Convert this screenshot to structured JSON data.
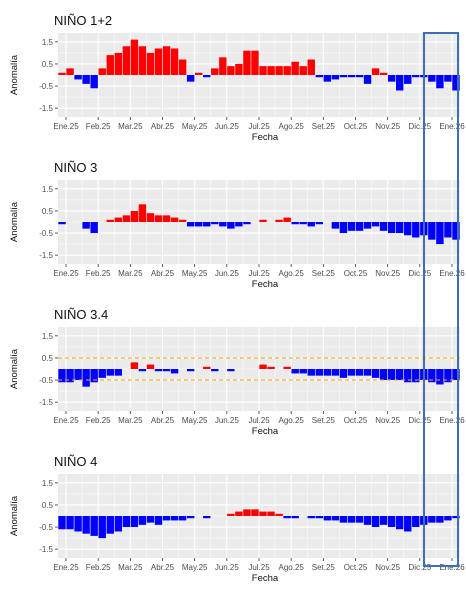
{
  "colors": {
    "positive": "#ff0000",
    "negative": "#0000ff",
    "threshold": "#ffa500",
    "panel_bg": "#ebebeb",
    "grid": "#ffffff",
    "highlight": "#3d6fb5"
  },
  "chart_data": [
    {
      "type": "bar",
      "title": "NIÑO 1+2",
      "xlabel": "Fecha",
      "ylabel": "Anomalía",
      "ylim": [
        -1.9,
        1.9
      ],
      "yticks": [
        -1.5,
        -0.5,
        0.5,
        1.5
      ],
      "xtick_labels": [
        "Ene.25",
        "Feb.25",
        "Mar.25",
        "Abr.25",
        "May.25",
        "Jun.25",
        "Jul.25",
        "Ago.25",
        "Set.25",
        "Oct.25",
        "Nov.25",
        "Dic.25",
        "Ene.26"
      ],
      "grid": true,
      "thresholds": [],
      "values": [
        0.1,
        0.3,
        -0.2,
        -0.4,
        -0.6,
        0.3,
        0.9,
        1.0,
        1.3,
        1.6,
        1.3,
        1.0,
        1.2,
        1.3,
        1.2,
        0.7,
        -0.3,
        0.1,
        -0.1,
        0.3,
        0.8,
        0.4,
        0.5,
        1.1,
        1.1,
        0.4,
        0.4,
        0.4,
        0.4,
        0.6,
        0.4,
        0.7,
        -0.1,
        -0.3,
        -0.2,
        -0.1,
        -0.1,
        -0.1,
        -0.4,
        0.3,
        0.1,
        -0.3,
        -0.7,
        -0.4,
        -0.1,
        -0.1,
        -0.3,
        -0.6,
        -0.3,
        -0.7
      ]
    },
    {
      "type": "bar",
      "title": "NIÑO 3",
      "xlabel": "Fecha",
      "ylabel": "Anomalía",
      "ylim": [
        -1.9,
        1.9
      ],
      "yticks": [
        -1.5,
        -0.5,
        0.5,
        1.5
      ],
      "xtick_labels": [
        "Ene.25",
        "Feb.25",
        "Mar.25",
        "Abr.25",
        "May.25",
        "Jun.25",
        "Jul.25",
        "Ago.25",
        "Set.25",
        "Oct.25",
        "Nov.25",
        "Dic.25",
        "Ene.26"
      ],
      "grid": true,
      "thresholds": [],
      "values": [
        -0.1,
        0.0,
        0.0,
        -0.3,
        -0.5,
        0.0,
        0.1,
        0.2,
        0.3,
        0.5,
        0.8,
        0.4,
        0.3,
        0.3,
        0.2,
        0.1,
        -0.2,
        -0.2,
        -0.2,
        -0.1,
        -0.2,
        -0.3,
        -0.2,
        -0.1,
        0.0,
        0.1,
        0.0,
        0.1,
        0.2,
        -0.1,
        -0.1,
        -0.2,
        -0.1,
        0.0,
        -0.3,
        -0.5,
        -0.4,
        -0.4,
        -0.3,
        -0.2,
        -0.4,
        -0.5,
        -0.5,
        -0.6,
        -0.7,
        -0.6,
        -0.8,
        -1.0,
        -0.7,
        -0.8
      ]
    },
    {
      "type": "bar",
      "title": "NIÑO 3.4",
      "xlabel": "Fecha",
      "ylabel": "Anomalía",
      "ylim": [
        -1.9,
        1.9
      ],
      "yticks": [
        -1.5,
        -0.5,
        0.5,
        1.5
      ],
      "xtick_labels": [
        "Ene.25",
        "Feb.25",
        "Mar.25",
        "Abr.25",
        "May.25",
        "Jun.25",
        "Jul.25",
        "Ago.25",
        "Set.25",
        "Oct.25",
        "Nov.25",
        "Dic.25",
        "Ene.26"
      ],
      "grid": true,
      "thresholds": [
        0.5,
        -0.5
      ],
      "values": [
        -0.6,
        -0.6,
        -0.5,
        -0.8,
        -0.6,
        -0.4,
        -0.3,
        -0.3,
        0.0,
        0.3,
        -0.1,
        0.2,
        -0.1,
        -0.1,
        -0.2,
        0.0,
        -0.1,
        0.0,
        0.1,
        -0.1,
        0.0,
        -0.1,
        0.0,
        0.0,
        0.0,
        0.2,
        0.1,
        0.0,
        0.1,
        -0.2,
        -0.2,
        -0.3,
        -0.3,
        -0.3,
        -0.3,
        -0.4,
        -0.3,
        -0.3,
        -0.3,
        -0.4,
        -0.5,
        -0.5,
        -0.5,
        -0.6,
        -0.6,
        -0.5,
        -0.6,
        -0.7,
        -0.6,
        -0.5
      ]
    },
    {
      "type": "bar",
      "title": "NIÑO 4",
      "xlabel": "Fecha",
      "ylabel": "Anomalía",
      "ylim": [
        -1.9,
        1.9
      ],
      "yticks": [
        -1.5,
        -0.5,
        0.5,
        1.5
      ],
      "xtick_labels": [
        "Ene.25",
        "Feb.25",
        "Mar.25",
        "Abr.25",
        "May.25",
        "Jun.25",
        "Jul.25",
        "Ago.25",
        "Set.25",
        "Oct.25",
        "Nov.25",
        "Dic.25",
        "Ene.26"
      ],
      "grid": true,
      "thresholds": [],
      "values": [
        -0.6,
        -0.6,
        -0.7,
        -0.8,
        -0.9,
        -1.0,
        -0.8,
        -0.7,
        -0.5,
        -0.5,
        -0.4,
        -0.3,
        -0.4,
        -0.2,
        -0.2,
        -0.2,
        -0.1,
        0.0,
        -0.1,
        0.0,
        0.0,
        0.1,
        0.2,
        0.3,
        0.3,
        0.2,
        0.2,
        0.1,
        -0.1,
        -0.1,
        0.0,
        -0.1,
        -0.1,
        -0.2,
        -0.2,
        -0.3,
        -0.3,
        -0.3,
        -0.4,
        -0.5,
        -0.4,
        -0.5,
        -0.6,
        -0.7,
        -0.5,
        -0.4,
        -0.3,
        -0.3,
        -0.2,
        -0.1
      ]
    }
  ]
}
